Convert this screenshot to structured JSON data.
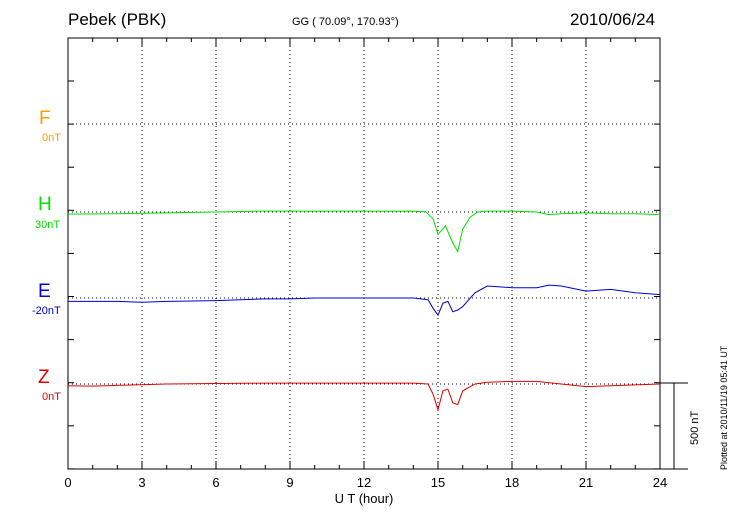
{
  "header": {
    "station": "Pebek (PBK)",
    "coords": "GG ( 70.09°, 170.93°)",
    "date": "2010/06/24"
  },
  "plotted_note": "Plotted at 2010/11/19 05:41 UT",
  "scale_label": "500 nT",
  "components": [
    {
      "letter": "F",
      "baseline": "0nT",
      "color": "#f5a000"
    },
    {
      "letter": "H",
      "baseline": "30nT",
      "color": "#00e000"
    },
    {
      "letter": "E",
      "baseline": "-20nT",
      "color": "#0000d0"
    },
    {
      "letter": "Z",
      "baseline": "0nT",
      "color": "#e00000"
    }
  ],
  "chart_data": {
    "type": "line",
    "xlabel": "U T (hour)",
    "xlim": [
      0,
      24
    ],
    "xticks": [
      0,
      3,
      6,
      9,
      12,
      15,
      18,
      21,
      24
    ],
    "scale_bar_nT": 500,
    "series": [
      {
        "name": "H",
        "color": "#00e000",
        "x": [
          0,
          2,
          4,
          6,
          7,
          8,
          9,
          10,
          11,
          12,
          13,
          14,
          14.5,
          14.8,
          15.0,
          15.3,
          15.6,
          15.8,
          16.0,
          16.3,
          16.6,
          17,
          18,
          19,
          19.5,
          20,
          21,
          22,
          23,
          24
        ],
        "y": [
          -12,
          -10,
          -5,
          0,
          3,
          5,
          5,
          4,
          5,
          5,
          4,
          5,
          2,
          -40,
          -130,
          -80,
          -180,
          -230,
          -100,
          -30,
          0,
          5,
          5,
          0,
          -15,
          -10,
          -5,
          -10,
          -10,
          -15
        ]
      },
      {
        "name": "E",
        "color": "#0000d0",
        "x": [
          0,
          2,
          3,
          4,
          6,
          8,
          9,
          10,
          12,
          13,
          14,
          14.6,
          14.8,
          15.0,
          15.2,
          15.4,
          15.6,
          15.8,
          16.0,
          16.5,
          17.0,
          18,
          19,
          19.5,
          20,
          21,
          22,
          23,
          24
        ],
        "y": [
          -20,
          -20,
          -25,
          -20,
          -15,
          -5,
          -5,
          0,
          0,
          0,
          0,
          -10,
          -60,
          -100,
          -30,
          -20,
          -80,
          -70,
          -50,
          30,
          70,
          60,
          60,
          75,
          70,
          40,
          50,
          30,
          20
        ]
      },
      {
        "name": "Z",
        "color": "#e00000",
        "x": [
          0,
          1,
          2,
          4,
          6,
          8,
          10,
          12,
          14,
          14.6,
          14.8,
          15.0,
          15.2,
          15.4,
          15.6,
          15.8,
          16.0,
          16.5,
          17,
          18,
          19,
          20,
          21,
          22,
          23,
          24
        ],
        "y": [
          -10,
          -12,
          -8,
          0,
          3,
          5,
          5,
          5,
          5,
          0,
          -60,
          -150,
          -40,
          -30,
          -110,
          -120,
          -40,
          0,
          10,
          15,
          15,
          0,
          -15,
          -10,
          -5,
          0
        ]
      }
    ]
  }
}
